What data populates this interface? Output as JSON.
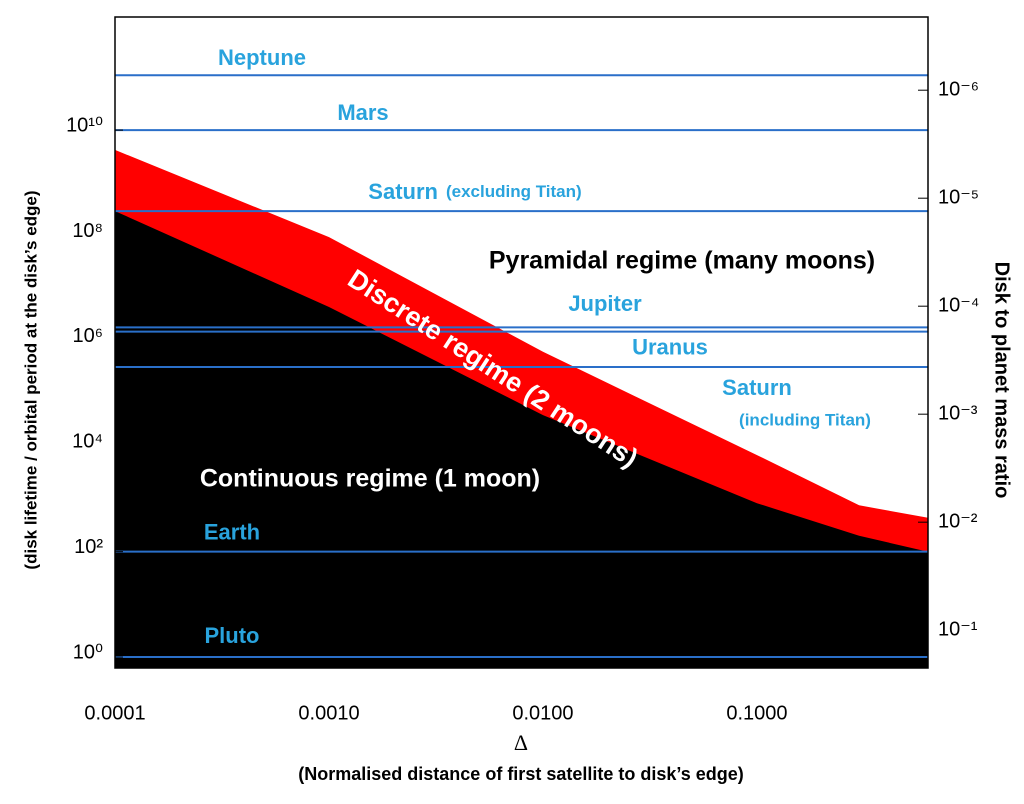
{
  "chart_data": {
    "type": "area",
    "x_log": true,
    "y_log": true,
    "y2_log": true,
    "x_label": "Δ",
    "x_label_note": "(Normalised distance of first satellite to disk’s edge)",
    "y_label": "(disk lifetime / orbital period at the disk’s edge)",
    "y2_label": "Disk to planet mass ratio",
    "xlim": [
      0.0001,
      0.63
    ],
    "ylim": [
      0.62,
      1400000000000.0
    ],
    "y2lim": [
      0.224,
      2.1e-07
    ],
    "xticks": [
      {
        "value": 0.0001,
        "label": "0.0001"
      },
      {
        "value": 0.001,
        "label": "0.0010"
      },
      {
        "value": 0.01,
        "label": "0.0100"
      },
      {
        "value": 0.1,
        "label": "0.1000"
      }
    ],
    "yticks": [
      {
        "value": 1,
        "label": "10⁰"
      },
      {
        "value": 100,
        "label": "10²"
      },
      {
        "value": 10000,
        "label": "10⁴"
      },
      {
        "value": 1000000,
        "label": "10⁶"
      },
      {
        "value": 100000000,
        "label": "10⁸"
      },
      {
        "value": 10000000000,
        "label": "10¹⁰"
      }
    ],
    "y2ticks": [
      {
        "value": 1e-06,
        "label": "10⁻⁶"
      },
      {
        "value": 1e-05,
        "label": "10⁻⁵"
      },
      {
        "value": 0.0001,
        "label": "10⁻⁴"
      },
      {
        "value": 0.001,
        "label": "10⁻³"
      },
      {
        "value": 0.01,
        "label": "10⁻²"
      },
      {
        "value": 0.1,
        "label": "10⁻¹"
      }
    ],
    "x": [
      0.0001,
      0.001,
      0.01,
      0.1,
      0.3,
      0.63
    ],
    "series": [
      {
        "name": "Discrete regime (2 moons)",
        "color": "#ff0000",
        "values": [
          4200000000,
          93000000,
          620000,
          6800,
          760,
          440
        ]
      },
      {
        "name": "Continuous regime (1 moon)",
        "color": "#000000",
        "values": [
          290000000,
          4400000,
          39000,
          830,
          200,
          100
        ]
      }
    ],
    "annotation": "Pyramidal regime (many moons)",
    "reference_line_color": "#2a6fc9",
    "reference_label_color": "#29a3dd",
    "reference_lines": [
      {
        "label": "Neptune",
        "value": 110000000000
      },
      {
        "label": "Mars",
        "value": 10000000000
      },
      {
        "label": "Saturn",
        "note": "(excluding Titan)",
        "value": 290000000
      },
      {
        "label": "Jupiter",
        "value": 1800000
      },
      {
        "label": "Uranus",
        "value": 1500000
      },
      {
        "label": "Saturn",
        "note": "(including Titan)",
        "value": 320000
      },
      {
        "label": "Earth",
        "value": 100
      },
      {
        "label": "Pluto",
        "value": 1
      }
    ]
  }
}
